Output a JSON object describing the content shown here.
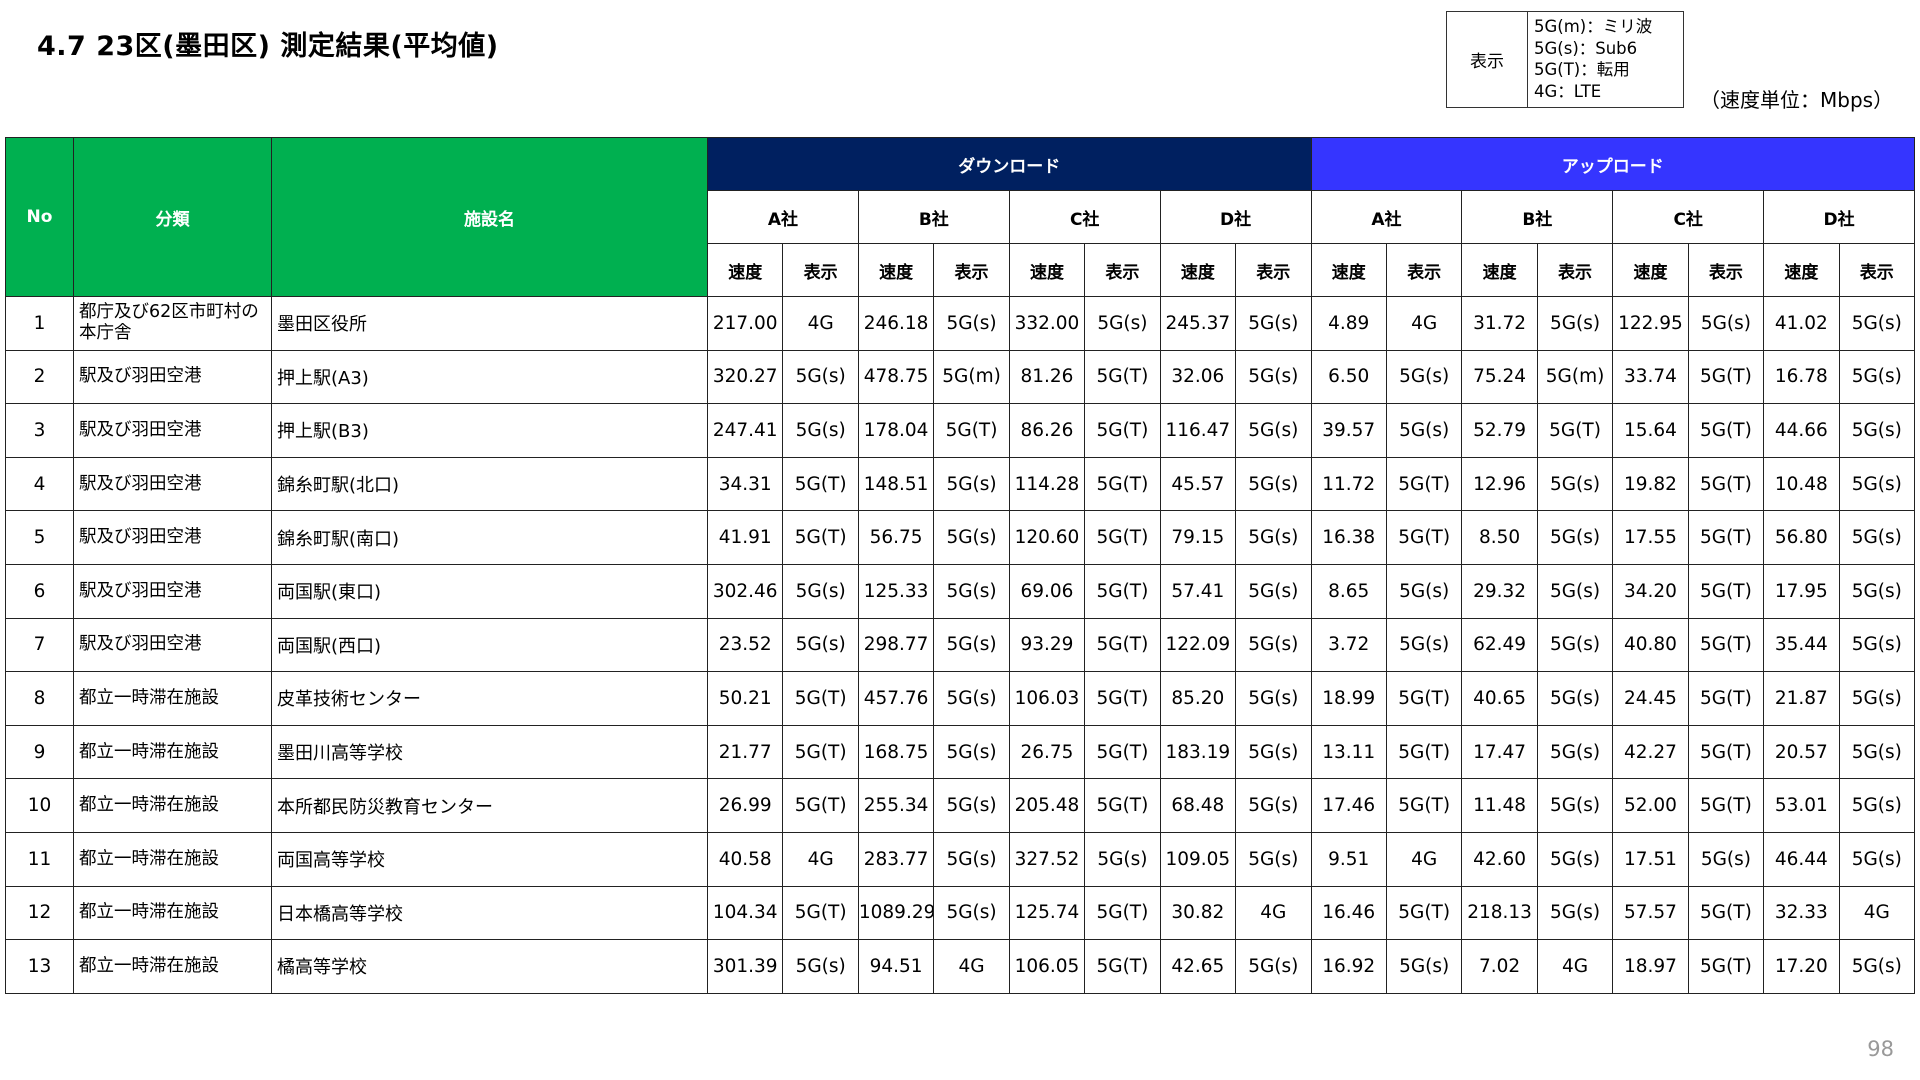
{
  "title": "4.7 23区(墨田区) 測定結果(平均値)",
  "legend": {
    "label": "表示",
    "items": [
      "5G(m)：ミリ波",
      "5G(s)：Sub6",
      "5G(T)：転用",
      "4G：LTE"
    ]
  },
  "unit": "（速度単位：Mbps）",
  "page_number": "98",
  "colors": {
    "header_green": "#00B050",
    "download_navy": "#002060",
    "upload_blue": "#3535FF"
  },
  "header": {
    "no": "No",
    "category": "分類",
    "facility": "施設名",
    "download": "ダウンロード",
    "upload": "アップロード",
    "companies": [
      "A社",
      "B社",
      "C社",
      "D社"
    ],
    "speed": "速度",
    "display": "表示"
  },
  "rows": [
    {
      "no": "1",
      "category": "都庁及び62区市町村の本庁舎",
      "facility": "墨田区役所",
      "dl": [
        [
          "217.00",
          "4G"
        ],
        [
          "246.18",
          "5G(s)"
        ],
        [
          "332.00",
          "5G(s)"
        ],
        [
          "245.37",
          "5G(s)"
        ]
      ],
      "ul": [
        [
          "4.89",
          "4G"
        ],
        [
          "31.72",
          "5G(s)"
        ],
        [
          "122.95",
          "5G(s)"
        ],
        [
          "41.02",
          "5G(s)"
        ]
      ]
    },
    {
      "no": "2",
      "category": "駅及び羽田空港",
      "facility": "押上駅(A3)",
      "dl": [
        [
          "320.27",
          "5G(s)"
        ],
        [
          "478.75",
          "5G(m)"
        ],
        [
          "81.26",
          "5G(T)"
        ],
        [
          "32.06",
          "5G(s)"
        ]
      ],
      "ul": [
        [
          "6.50",
          "5G(s)"
        ],
        [
          "75.24",
          "5G(m)"
        ],
        [
          "33.74",
          "5G(T)"
        ],
        [
          "16.78",
          "5G(s)"
        ]
      ]
    },
    {
      "no": "3",
      "category": "駅及び羽田空港",
      "facility": "押上駅(B3)",
      "dl": [
        [
          "247.41",
          "5G(s)"
        ],
        [
          "178.04",
          "5G(T)"
        ],
        [
          "86.26",
          "5G(T)"
        ],
        [
          "116.47",
          "5G(s)"
        ]
      ],
      "ul": [
        [
          "39.57",
          "5G(s)"
        ],
        [
          "52.79",
          "5G(T)"
        ],
        [
          "15.64",
          "5G(T)"
        ],
        [
          "44.66",
          "5G(s)"
        ]
      ]
    },
    {
      "no": "4",
      "category": "駅及び羽田空港",
      "facility": "錦糸町駅(北口)",
      "dl": [
        [
          "34.31",
          "5G(T)"
        ],
        [
          "148.51",
          "5G(s)"
        ],
        [
          "114.28",
          "5G(T)"
        ],
        [
          "45.57",
          "5G(s)"
        ]
      ],
      "ul": [
        [
          "11.72",
          "5G(T)"
        ],
        [
          "12.96",
          "5G(s)"
        ],
        [
          "19.82",
          "5G(T)"
        ],
        [
          "10.48",
          "5G(s)"
        ]
      ]
    },
    {
      "no": "5",
      "category": "駅及び羽田空港",
      "facility": "錦糸町駅(南口)",
      "dl": [
        [
          "41.91",
          "5G(T)"
        ],
        [
          "56.75",
          "5G(s)"
        ],
        [
          "120.60",
          "5G(T)"
        ],
        [
          "79.15",
          "5G(s)"
        ]
      ],
      "ul": [
        [
          "16.38",
          "5G(T)"
        ],
        [
          "8.50",
          "5G(s)"
        ],
        [
          "17.55",
          "5G(T)"
        ],
        [
          "56.80",
          "5G(s)"
        ]
      ]
    },
    {
      "no": "6",
      "category": "駅及び羽田空港",
      "facility": "両国駅(東口)",
      "dl": [
        [
          "302.46",
          "5G(s)"
        ],
        [
          "125.33",
          "5G(s)"
        ],
        [
          "69.06",
          "5G(T)"
        ],
        [
          "57.41",
          "5G(s)"
        ]
      ],
      "ul": [
        [
          "8.65",
          "5G(s)"
        ],
        [
          "29.32",
          "5G(s)"
        ],
        [
          "34.20",
          "5G(T)"
        ],
        [
          "17.95",
          "5G(s)"
        ]
      ]
    },
    {
      "no": "7",
      "category": "駅及び羽田空港",
      "facility": "両国駅(西口)",
      "dl": [
        [
          "23.52",
          "5G(s)"
        ],
        [
          "298.77",
          "5G(s)"
        ],
        [
          "93.29",
          "5G(T)"
        ],
        [
          "122.09",
          "5G(s)"
        ]
      ],
      "ul": [
        [
          "3.72",
          "5G(s)"
        ],
        [
          "62.49",
          "5G(s)"
        ],
        [
          "40.80",
          "5G(T)"
        ],
        [
          "35.44",
          "5G(s)"
        ]
      ]
    },
    {
      "no": "8",
      "category": "都立一時滞在施設",
      "facility": "皮革技術センター",
      "dl": [
        [
          "50.21",
          "5G(T)"
        ],
        [
          "457.76",
          "5G(s)"
        ],
        [
          "106.03",
          "5G(T)"
        ],
        [
          "85.20",
          "5G(s)"
        ]
      ],
      "ul": [
        [
          "18.99",
          "5G(T)"
        ],
        [
          "40.65",
          "5G(s)"
        ],
        [
          "24.45",
          "5G(T)"
        ],
        [
          "21.87",
          "5G(s)"
        ]
      ]
    },
    {
      "no": "9",
      "category": "都立一時滞在施設",
      "facility": "墨田川高等学校",
      "dl": [
        [
          "21.77",
          "5G(T)"
        ],
        [
          "168.75",
          "5G(s)"
        ],
        [
          "26.75",
          "5G(T)"
        ],
        [
          "183.19",
          "5G(s)"
        ]
      ],
      "ul": [
        [
          "13.11",
          "5G(T)"
        ],
        [
          "17.47",
          "5G(s)"
        ],
        [
          "42.27",
          "5G(T)"
        ],
        [
          "20.57",
          "5G(s)"
        ]
      ]
    },
    {
      "no": "10",
      "category": "都立一時滞在施設",
      "facility": "本所都民防災教育センター",
      "dl": [
        [
          "26.99",
          "5G(T)"
        ],
        [
          "255.34",
          "5G(s)"
        ],
        [
          "205.48",
          "5G(T)"
        ],
        [
          "68.48",
          "5G(s)"
        ]
      ],
      "ul": [
        [
          "17.46",
          "5G(T)"
        ],
        [
          "11.48",
          "5G(s)"
        ],
        [
          "52.00",
          "5G(T)"
        ],
        [
          "53.01",
          "5G(s)"
        ]
      ]
    },
    {
      "no": "11",
      "category": "都立一時滞在施設",
      "facility": "両国高等学校",
      "dl": [
        [
          "40.58",
          "4G"
        ],
        [
          "283.77",
          "5G(s)"
        ],
        [
          "327.52",
          "5G(s)"
        ],
        [
          "109.05",
          "5G(s)"
        ]
      ],
      "ul": [
        [
          "9.51",
          "4G"
        ],
        [
          "42.60",
          "5G(s)"
        ],
        [
          "17.51",
          "5G(s)"
        ],
        [
          "46.44",
          "5G(s)"
        ]
      ]
    },
    {
      "no": "12",
      "category": "都立一時滞在施設",
      "facility": "日本橋高等学校",
      "dl": [
        [
          "104.34",
          "5G(T)"
        ],
        [
          "1089.29",
          "5G(s)"
        ],
        [
          "125.74",
          "5G(T)"
        ],
        [
          "30.82",
          "4G"
        ]
      ],
      "ul": [
        [
          "16.46",
          "5G(T)"
        ],
        [
          "218.13",
          "5G(s)"
        ],
        [
          "57.57",
          "5G(T)"
        ],
        [
          "32.33",
          "4G"
        ]
      ]
    },
    {
      "no": "13",
      "category": "都立一時滞在施設",
      "facility": "橘高等学校",
      "dl": [
        [
          "301.39",
          "5G(s)"
        ],
        [
          "94.51",
          "4G"
        ],
        [
          "106.05",
          "5G(T)"
        ],
        [
          "42.65",
          "5G(s)"
        ]
      ],
      "ul": [
        [
          "16.92",
          "5G(s)"
        ],
        [
          "7.02",
          "4G"
        ],
        [
          "18.97",
          "5G(T)"
        ],
        [
          "17.20",
          "5G(s)"
        ]
      ]
    }
  ]
}
